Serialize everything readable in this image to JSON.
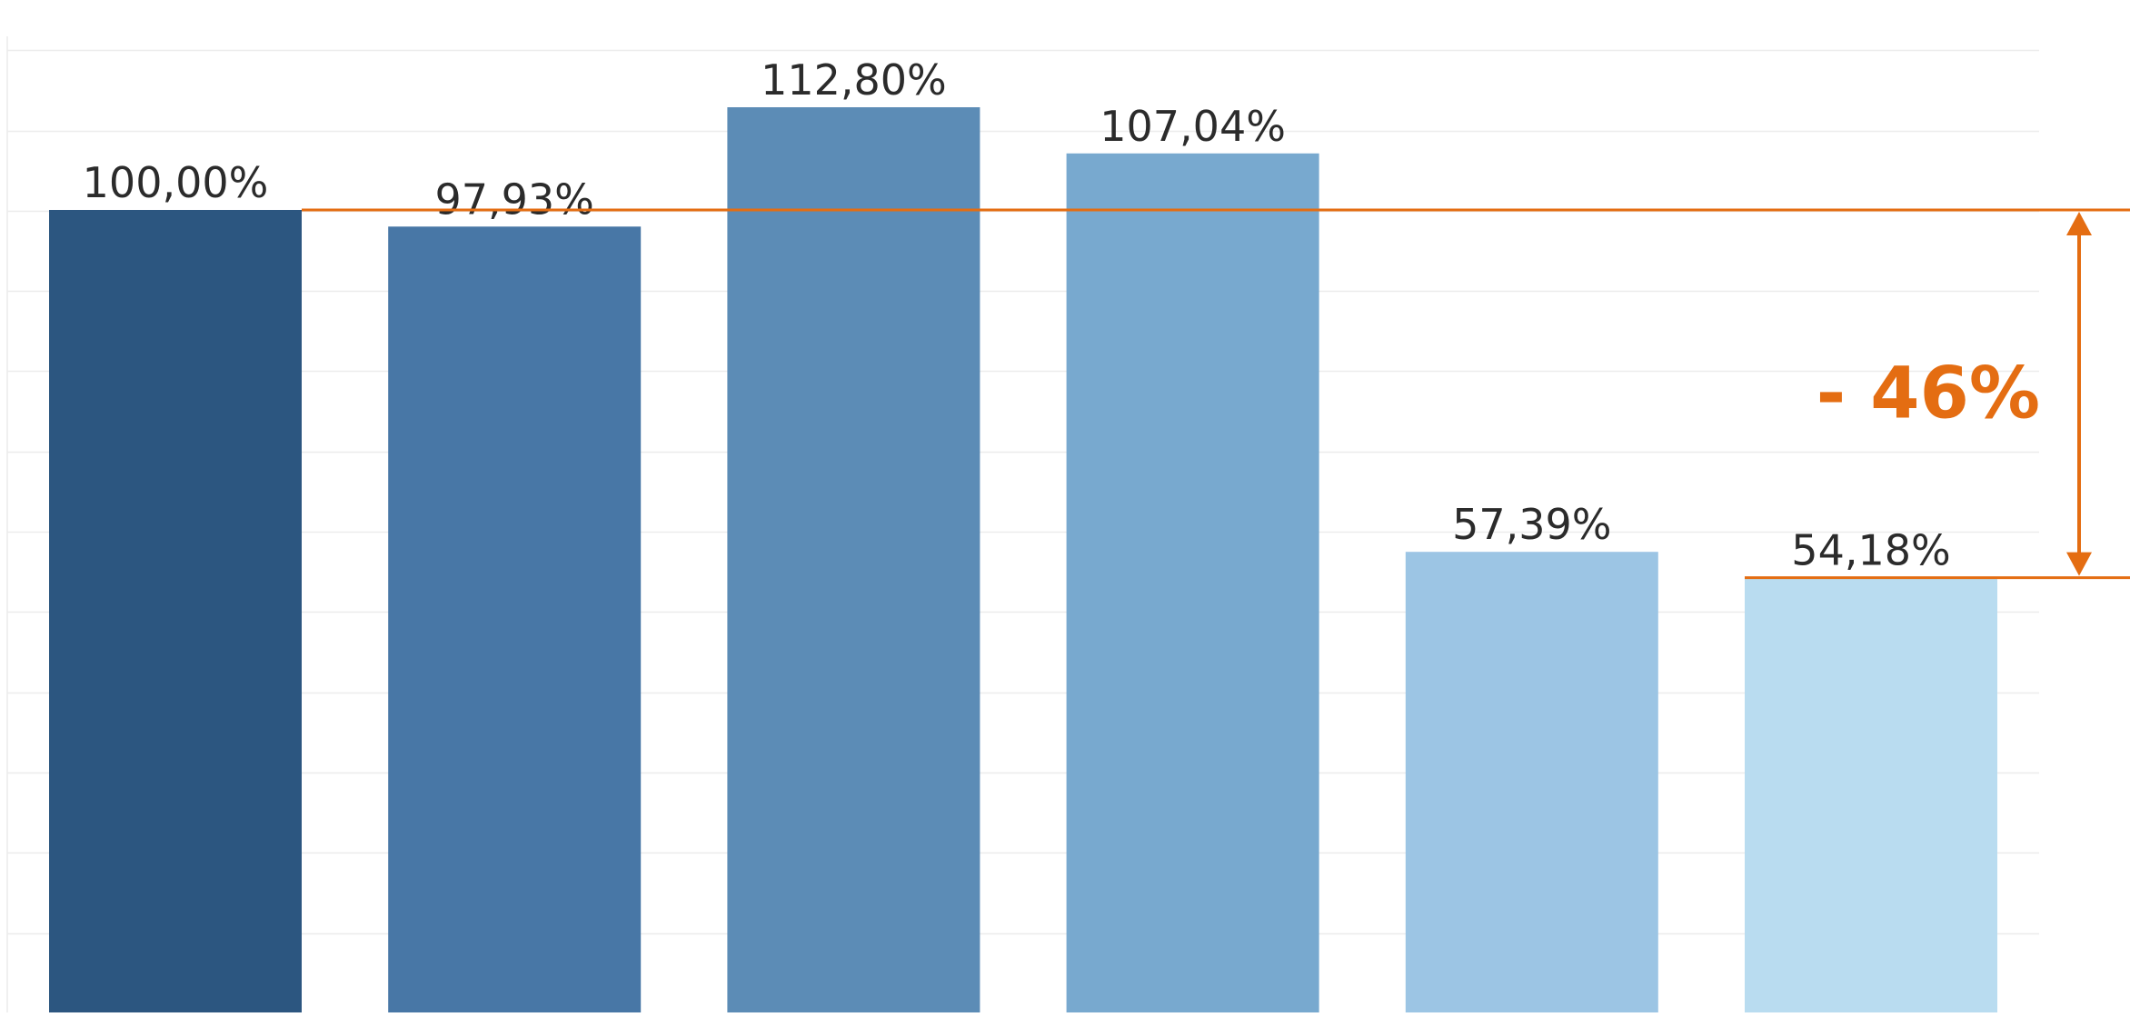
{
  "chart_data": {
    "type": "bar",
    "values": [
      100.0,
      97.93,
      112.8,
      107.04,
      57.39,
      54.18
    ],
    "value_labels": [
      "100,00%",
      "97,93%",
      "112,80%",
      "107,04%",
      "57,39%",
      "54,18%"
    ],
    "bar_colors": [
      "#2c5680",
      "#4877a6",
      "#5c8cb6",
      "#78a9cf",
      "#9cc5e4",
      "#b9dcf0"
    ],
    "ylim": [
      0,
      125
    ],
    "grid": true,
    "gridline_color": "#ececec",
    "annotation": {
      "label": "- 46%",
      "from_value": 100.0,
      "to_value": 54.18,
      "color": "#e46d12"
    }
  }
}
